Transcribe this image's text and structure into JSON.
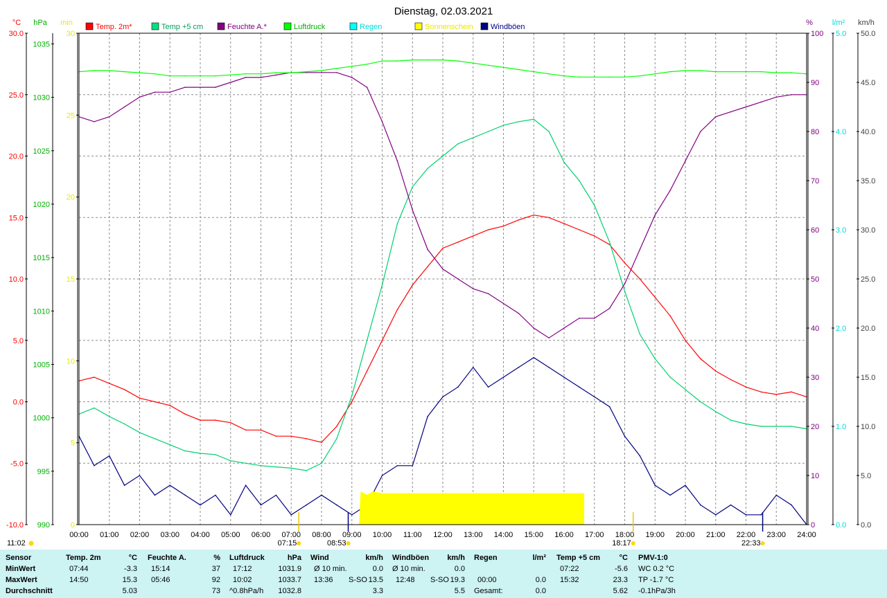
{
  "chart_data": {
    "type": "line",
    "title": "Dienstag, 02.03.2021",
    "x_range": [
      0,
      24
    ],
    "x_ticks": [
      "00:00",
      "01:00",
      "02:00",
      "03:00",
      "04:00",
      "05:00",
      "06:00",
      "07:00",
      "08:00",
      "09:00",
      "10:00",
      "11:00",
      "12:00",
      "13:00",
      "14:00",
      "15:00",
      "16:00",
      "17:00",
      "18:00",
      "19:00",
      "20:00",
      "21:00",
      "22:00",
      "23:00",
      "24:00"
    ],
    "grid": true,
    "axes": {
      "temp": {
        "unit": "°C",
        "range": [
          -10,
          30
        ],
        "ticks": [
          "-10.0",
          "-5.0",
          "0.0",
          "5.0",
          "10.0",
          "15.0",
          "20.0",
          "25.0",
          "30.0"
        ],
        "color": "#ff0000"
      },
      "pressure": {
        "unit": "hPa",
        "range": [
          990,
          1036
        ],
        "ticks": [
          "990",
          "995",
          "1000",
          "1005",
          "1010",
          "1015",
          "1020",
          "1025",
          "1030",
          "1035"
        ],
        "color": "#00b000"
      },
      "sunshine": {
        "unit": "min",
        "range": [
          0,
          30
        ],
        "ticks": [
          "0",
          "5",
          "10",
          "15",
          "20",
          "25",
          "30"
        ],
        "color": "#e8e800"
      },
      "humidity": {
        "unit": "%",
        "range": [
          0,
          100
        ],
        "ticks": [
          "0",
          "10",
          "20",
          "30",
          "40",
          "50",
          "60",
          "70",
          "80",
          "90",
          "100"
        ],
        "color": "#800080"
      },
      "rain": {
        "unit": "l/m²",
        "range": [
          0,
          5
        ],
        "ticks": [
          "0.0",
          "1.0",
          "2.0",
          "3.0",
          "4.0",
          "5.0"
        ],
        "color": "#00d8d8"
      },
      "wind": {
        "unit": "km/h",
        "range": [
          0,
          50
        ],
        "ticks": [
          "0.0",
          "5.0",
          "10.0",
          "15.0",
          "20.0",
          "25.0",
          "30.0",
          "35.0",
          "40.0",
          "45.0",
          "50.0"
        ],
        "color": "#404040"
      }
    },
    "legend": [
      {
        "name": "Temp. 2m*",
        "color": "#ff0000",
        "text_color": "#ff0000"
      },
      {
        "name": "Temp +5 cm",
        "color": "#00e080",
        "text_color": "#00a060"
      },
      {
        "name": "Feuchte A.*",
        "color": "#800080",
        "text_color": "#800080"
      },
      {
        "name": "Luftdruck",
        "color": "#00ff00",
        "text_color": "#00b000"
      },
      {
        "name": "Regen",
        "color": "#00ffff",
        "text_color": "#00d8d8"
      },
      {
        "name": "Sonnenschein",
        "color": "#ffff00",
        "text_color": "#e8e800"
      },
      {
        "name": "Windböen",
        "color": "#000080",
        "text_color": "#000080"
      }
    ],
    "series": [
      {
        "name": "Temp. 2m*",
        "axis": "temp",
        "color": "#ff0000",
        "x": [
          0,
          0.5,
          1,
          1.5,
          2,
          2.5,
          3,
          3.5,
          4,
          4.5,
          5,
          5.5,
          6,
          6.5,
          7,
          7.5,
          8,
          8.5,
          9,
          9.5,
          10,
          10.5,
          11,
          11.5,
          12,
          12.5,
          13,
          13.5,
          14,
          14.5,
          15,
          15.5,
          16,
          16.5,
          17,
          17.5,
          18,
          18.5,
          19,
          19.5,
          20,
          20.5,
          21,
          21.5,
          22,
          22.5,
          23,
          23.5,
          24
        ],
        "y": [
          1.7,
          2.0,
          1.5,
          1.0,
          0.3,
          0.0,
          -0.3,
          -1.0,
          -1.5,
          -1.5,
          -1.7,
          -2.3,
          -2.3,
          -2.8,
          -2.8,
          -3.0,
          -3.3,
          -2.0,
          0.0,
          2.5,
          5.0,
          7.5,
          9.5,
          11.0,
          12.5,
          13.0,
          13.5,
          14.0,
          14.3,
          14.8,
          15.2,
          15.0,
          14.5,
          14.0,
          13.5,
          12.8,
          11.3,
          10.0,
          8.5,
          7.0,
          5.0,
          3.5,
          2.5,
          1.8,
          1.2,
          0.8,
          0.6,
          0.8,
          0.4
        ]
      },
      {
        "name": "Temp +5 cm",
        "axis": "temp",
        "color": "#00d070",
        "x": [
          0,
          0.5,
          1,
          1.5,
          2,
          2.5,
          3,
          3.5,
          4,
          4.5,
          5,
          5.5,
          6,
          6.5,
          7,
          7.5,
          8,
          8.5,
          9,
          9.5,
          10,
          10.5,
          11,
          11.5,
          12,
          12.5,
          13,
          13.5,
          14,
          14.5,
          15,
          15.5,
          16,
          16.5,
          17,
          17.5,
          18,
          18.5,
          19,
          19.5,
          20,
          20.5,
          21,
          21.5,
          22,
          22.5,
          23,
          23.5,
          24
        ],
        "y": [
          -1.0,
          -0.5,
          -1.2,
          -1.8,
          -2.5,
          -3.0,
          -3.5,
          -4.0,
          -4.2,
          -4.3,
          -4.8,
          -5.0,
          -5.2,
          -5.3,
          -5.4,
          -5.6,
          -5.0,
          -3.0,
          0.5,
          5.0,
          9.5,
          14.5,
          17.5,
          19.0,
          20.0,
          21.0,
          21.5,
          22.0,
          22.5,
          22.8,
          23.0,
          22.0,
          19.5,
          18.0,
          16.0,
          13.0,
          9.0,
          5.5,
          3.5,
          2.0,
          1.0,
          0.0,
          -0.8,
          -1.5,
          -1.8,
          -2.0,
          -2.0,
          -2.0,
          -2.2
        ]
      },
      {
        "name": "Feuchte A.*",
        "axis": "humidity",
        "color": "#800080",
        "x": [
          0,
          0.5,
          1,
          1.5,
          2,
          2.5,
          3,
          3.5,
          4,
          4.5,
          5,
          5.5,
          6,
          6.5,
          7,
          7.5,
          8,
          8.5,
          9,
          9.5,
          10,
          10.5,
          11,
          11.5,
          12,
          12.5,
          13,
          13.5,
          14,
          14.5,
          15,
          15.5,
          16,
          16.5,
          17,
          17.5,
          18,
          18.5,
          19,
          19.5,
          20,
          20.5,
          21,
          21.5,
          22,
          22.5,
          23,
          23.5,
          24
        ],
        "y": [
          83,
          82,
          83,
          85,
          87,
          88,
          88,
          89,
          89,
          89,
          90,
          91,
          91,
          91.5,
          92,
          92,
          92,
          92,
          91,
          89,
          82,
          74,
          64,
          56,
          52,
          50,
          48,
          47,
          45,
          43,
          40,
          38,
          40,
          42,
          42,
          44,
          49,
          56,
          63,
          68,
          74,
          80,
          83,
          84,
          85,
          86,
          87,
          87.5,
          87.5
        ]
      },
      {
        "name": "Luftdruck",
        "axis": "pressure",
        "color": "#00ff00",
        "x": [
          0,
          0.5,
          1,
          1.5,
          2,
          2.5,
          3,
          3.5,
          4,
          4.5,
          5,
          5.5,
          6,
          6.5,
          7,
          7.5,
          8,
          8.5,
          9,
          9.5,
          10,
          10.5,
          11,
          11.5,
          12,
          12.5,
          13,
          13.5,
          14,
          14.5,
          15,
          15.5,
          16,
          16.5,
          17,
          17.5,
          18,
          18.5,
          19,
          19.5,
          20,
          20.5,
          21,
          21.5,
          22,
          22.5,
          23,
          23.5,
          24
        ],
        "y": [
          1032.4,
          1032.5,
          1032.5,
          1032.4,
          1032.3,
          1032.2,
          1032.0,
          1032.0,
          1032.0,
          1032.0,
          1032.1,
          1032.2,
          1032.2,
          1032.3,
          1032.3,
          1032.4,
          1032.5,
          1032.7,
          1032.9,
          1033.1,
          1033.4,
          1033.4,
          1033.5,
          1033.5,
          1033.5,
          1033.4,
          1033.2,
          1033.0,
          1032.8,
          1032.6,
          1032.4,
          1032.2,
          1032.0,
          1031.9,
          1031.9,
          1031.9,
          1031.9,
          1032.0,
          1032.2,
          1032.4,
          1032.5,
          1032.5,
          1032.4,
          1032.4,
          1032.4,
          1032.4,
          1032.3,
          1032.3,
          1032.2
        ]
      },
      {
        "name": "Windböen",
        "axis": "wind",
        "color": "#000080",
        "x": [
          0,
          0.5,
          1,
          1.5,
          2,
          2.5,
          3,
          3.5,
          4,
          4.5,
          5,
          5.5,
          6,
          6.5,
          7,
          7.5,
          8,
          8.5,
          9,
          9.5,
          10,
          10.5,
          11,
          11.5,
          12,
          12.5,
          13,
          13.5,
          14,
          14.5,
          15,
          15.5,
          16,
          16.5,
          17,
          17.5,
          18,
          18.5,
          19,
          19.5,
          20,
          20.5,
          21,
          21.5,
          22,
          22.5,
          23,
          23.5,
          24
        ],
        "y": [
          9,
          6,
          7,
          4,
          5,
          3,
          4,
          3,
          2,
          3,
          1,
          4,
          2,
          3,
          1,
          2,
          3,
          2,
          1,
          2,
          5,
          6,
          6,
          11,
          13,
          14,
          16,
          14,
          15,
          16,
          17,
          16,
          15,
          14,
          13,
          12,
          9,
          7,
          4,
          3,
          4,
          2,
          1,
          2,
          1,
          1,
          3,
          2,
          0
        ]
      },
      {
        "name": "Sonnenschein",
        "axis": "sunshine",
        "color": "#ffff00",
        "kind": "area",
        "x": [
          9.25,
          9.3,
          9.5,
          9.7,
          10.0,
          10.5,
          11,
          12,
          13,
          14,
          15,
          16,
          16.65,
          16.65
        ],
        "y": [
          0,
          2,
          1.8,
          2.0,
          1.9,
          1.9,
          1.9,
          1.9,
          1.9,
          1.9,
          1.9,
          1.9,
          1.9,
          0
        ]
      }
    ],
    "markers": [
      {
        "time": 7.25,
        "label": "07:15",
        "kind": "sunrise"
      },
      {
        "time": 8.88,
        "label": "08:53",
        "kind": "other"
      },
      {
        "time": 18.28,
        "label": "18:17",
        "kind": "sunset"
      },
      {
        "time": 22.55,
        "label": "22:33",
        "kind": "other"
      }
    ],
    "current_time_label": "11:02"
  },
  "stats": {
    "headers": {
      "sensor": "Sensor",
      "temp": "Temp. 2m",
      "temp_unit": "°C",
      "hum": "Feuchte A.",
      "hum_unit": "%",
      "press": "Luftdruck",
      "press_unit": "hPa",
      "wind": "Wind",
      "wind_unit": "km/h",
      "gust": "Windböen",
      "gust_unit": "km/h",
      "rain": "Regen",
      "rain_unit": "l/m²",
      "t5": "Temp +5 cm",
      "t5_unit": "°C",
      "pmv": "PMV-1:0"
    },
    "rows": [
      {
        "label": "MinWert",
        "temp_time": "07:44",
        "temp_val": "-3.3",
        "hum_time": "15:14",
        "hum_val": "37",
        "press_time": "17:12",
        "press_val": "1031.9",
        "wind_time": "Ø 10 min.",
        "wind_dir": "",
        "wind_val": "0.0",
        "gust_time": "Ø 10 min.",
        "gust_dir": "",
        "gust_val": "0.0",
        "rain_time": "",
        "rain_val": "",
        "t5_time": "07:22",
        "t5_val": "-5.6",
        "pmv": "WC 0.2 °C"
      },
      {
        "label": "MaxWert",
        "temp_time": "14:50",
        "temp_val": "15.3",
        "hum_time": "05:46",
        "hum_val": "92",
        "press_time": "10:02",
        "press_val": "1033.7",
        "wind_time": "13:36",
        "wind_dir": "S-SO",
        "wind_val": "13.5",
        "gust_time": "12:48",
        "gust_dir": "S-SO",
        "gust_val": "19.3",
        "rain_time": "00:00",
        "rain_val": "0.0",
        "t5_time": "15:32",
        "t5_val": "23.3",
        "pmv": "TP -1.7 °C"
      },
      {
        "label": "Durchschnitt",
        "temp_time": "",
        "temp_val": "5.03",
        "hum_time": "",
        "hum_val": "73",
        "press_time": "^0.8hPa/h",
        "press_val": "1032.8",
        "wind_time": "",
        "wind_dir": "",
        "wind_val": "3.3",
        "gust_time": "",
        "gust_dir": "",
        "gust_val": "5.5",
        "rain_time": "Gesamt:",
        "rain_val": "0.0",
        "t5_time": "",
        "t5_val": "5.62",
        "pmv": "-0.1hPa/3h"
      }
    ]
  }
}
